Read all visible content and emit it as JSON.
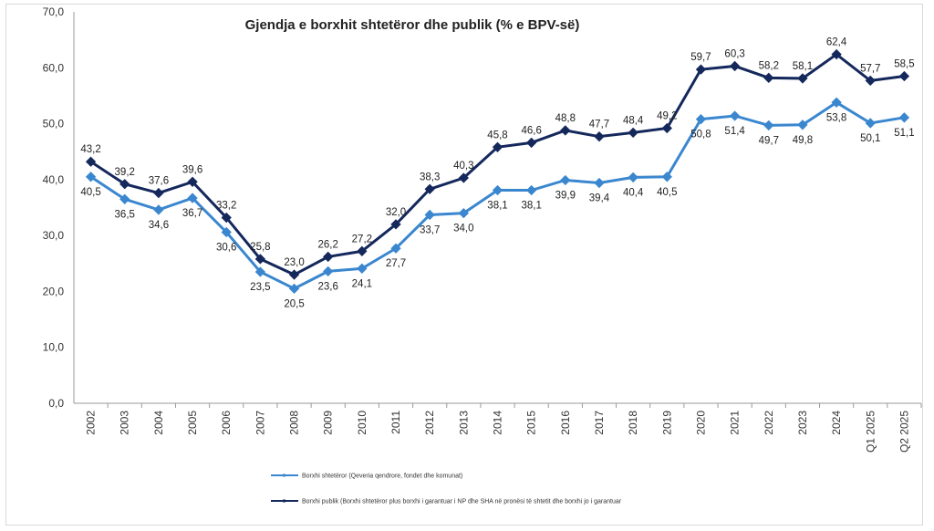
{
  "chart_data": {
    "type": "line",
    "title": "Gjendja e borxhit shtetëror dhe publik (% e BPV-së)",
    "categories": [
      "2002",
      "2003",
      "2004",
      "2005",
      "2006",
      "2007",
      "2008",
      "2009",
      "2010",
      "2011",
      "2012",
      "2013",
      "2014",
      "2015",
      "2016",
      "2017",
      "2018",
      "2019",
      "2020",
      "2021",
      "2022",
      "2023",
      "2024",
      "Q1 2025",
      "Q2 2025"
    ],
    "ylim": [
      0,
      70
    ],
    "yticks": [
      "0,0",
      "10,0",
      "20,0",
      "30,0",
      "40,0",
      "50,0",
      "60,0",
      "70,0"
    ],
    "grid": false,
    "legend_placement": "bottom",
    "series": [
      {
        "name": "Borxhi shtetëror (Qeveria qendrore, fondet dhe komunat)",
        "color": "#3a87cf",
        "values": [
          40.5,
          36.5,
          34.6,
          36.7,
          30.6,
          23.5,
          20.5,
          23.6,
          24.1,
          27.7,
          33.7,
          34.0,
          38.1,
          38.1,
          39.9,
          39.4,
          40.4,
          40.5,
          50.8,
          51.4,
          49.7,
          49.8,
          53.8,
          50.1,
          51.1
        ]
      },
      {
        "name": "Borxhi publik (Borxhi shtetëror plus borxhi i garantuar i NP dhe SHA në pronësi të shtetit dhe borxhi  jo i garantuar",
        "color": "#14285c",
        "values": [
          43.2,
          39.2,
          37.6,
          39.6,
          33.2,
          25.8,
          23.0,
          26.2,
          27.2,
          32.0,
          38.3,
          40.3,
          45.8,
          46.6,
          48.8,
          47.7,
          48.4,
          49.2,
          59.7,
          60.3,
          58.2,
          58.1,
          62.4,
          57.7,
          58.5
        ]
      }
    ]
  }
}
